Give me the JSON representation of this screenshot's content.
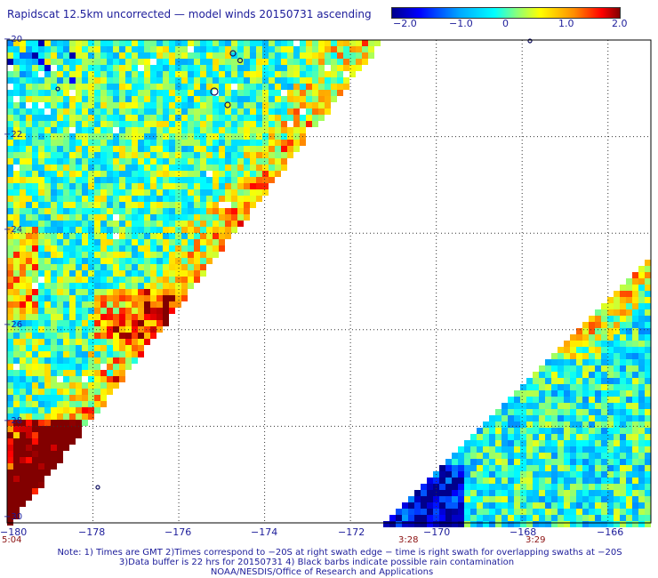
{
  "title": "Rapidscat 12.5km uncorrected — model winds 20150731 ascending",
  "colorbar": {
    "ticks": [
      "−2.0",
      "−1.0",
      "0",
      "1.0",
      "2.0"
    ],
    "min": -2.0,
    "max": 2.0
  },
  "map": {
    "lon_range": [
      -180,
      -165
    ],
    "lat_range": [
      -30,
      -20
    ],
    "lon_ticks": [
      "−180",
      "−178",
      "−176",
      "−174",
      "−172",
      "−170",
      "−168",
      "−166"
    ],
    "lat_ticks": [
      "−20",
      "−22",
      "−24",
      "−26",
      "−28",
      "−30"
    ],
    "grid": true
  },
  "times": [
    "5:04",
    "3:28",
    "3:29"
  ],
  "notes": [
    "Note: 1) Times are GMT 2)Times correspond to −20S at right swath edge − time is right swath for overlapping swaths at −20S",
    "3)Data buffer is 22 hrs for 20150731 4) Black barbs indicate possible rain contamination",
    "NOAA/NESDIS/Office of Research and Applications"
  ]
}
